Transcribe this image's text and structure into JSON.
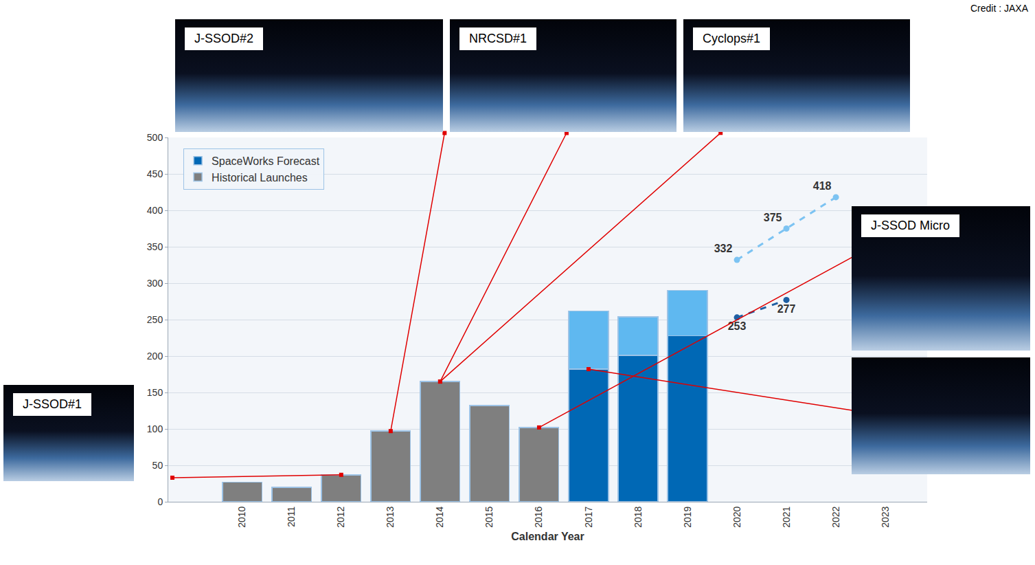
{
  "chart_data": {
    "type": "bar",
    "stacked": true,
    "grid": true,
    "legend": "upper left",
    "x_label": "Calendar Year",
    "categories": [
      "2010",
      "2011",
      "2012",
      "2013",
      "2014",
      "2015",
      "2016",
      "2017",
      "2018",
      "2019",
      "2020",
      "2021",
      "2022",
      "2023"
    ],
    "ylim": [
      0,
      500
    ],
    "yticks": [
      0,
      50,
      100,
      150,
      200,
      250,
      300,
      350,
      400,
      450,
      500
    ],
    "series": [
      {
        "name": "SpaceWorks Forecast",
        "type": "bar",
        "color": "#0068b5",
        "values": [
          null,
          null,
          null,
          null,
          null,
          null,
          null,
          182,
          201,
          228,
          null,
          null,
          null,
          null
        ]
      },
      {
        "type": "bar",
        "color": "#5fb8f0",
        "values": [
          null,
          null,
          null,
          null,
          null,
          null,
          null,
          80,
          53,
          62,
          null,
          null,
          null,
          null
        ]
      },
      {
        "name": "Historical Launches",
        "type": "bar",
        "color": "#7f7f7f",
        "values": [
          27,
          20,
          37,
          97,
          165,
          132,
          102,
          null,
          null,
          null,
          null,
          null,
          null,
          null
        ]
      },
      {
        "name": "SpaceWorks Forecast",
        "type": "line",
        "color": "#1f5fa3",
        "line_style": "dashed",
        "marker": "circle",
        "data_labels": true,
        "values": [
          null,
          null,
          null,
          null,
          null,
          null,
          null,
          null,
          null,
          null,
          253,
          277,
          null,
          null
        ]
      },
      {
        "type": "line",
        "color": "#7cc3f2",
        "line_style": "dashed",
        "marker": "circle",
        "data_labels": true,
        "values": [
          null,
          null,
          null,
          null,
          null,
          null,
          null,
          null,
          null,
          null,
          332,
          375,
          418,
          null
        ]
      }
    ]
  },
  "photos": [
    {
      "label": "J-SSOD#1",
      "year": "2012"
    },
    {
      "label": "J-SSOD#2",
      "year": "2013"
    },
    {
      "label": "NRCSD#1",
      "year": "2014"
    },
    {
      "label": "Cyclops#1",
      "year": "2014"
    },
    {
      "label": "J-SSOD Micro",
      "year": "2016"
    },
    {
      "year": "2017"
    }
  ],
  "credit": "Credit : JAXA"
}
